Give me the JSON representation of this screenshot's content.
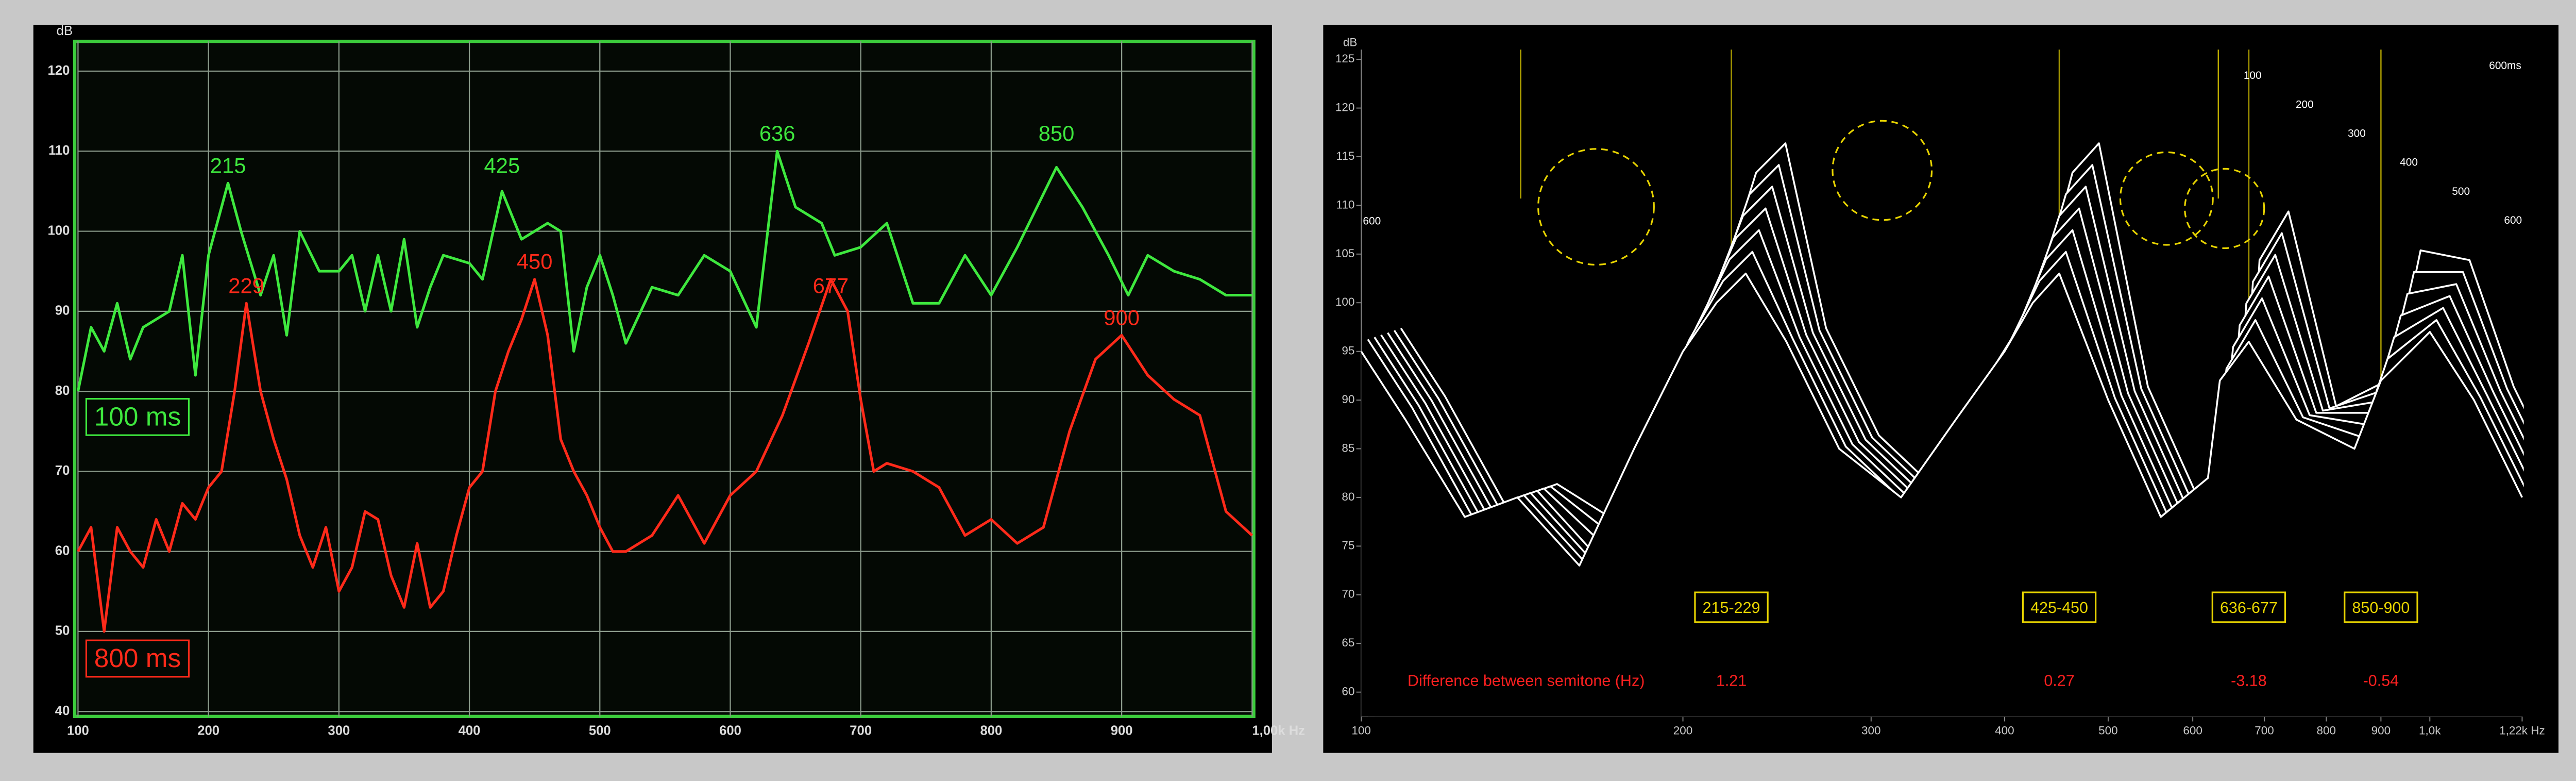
{
  "chart_data": [
    {
      "type": "line",
      "ylabel": "dB",
      "xlim": [
        100,
        1000
      ],
      "ylim": [
        40,
        120
      ],
      "xticks": [
        100,
        200,
        300,
        400,
        500,
        600,
        700,
        800,
        900,
        {
          "value": 1000,
          "label": "1,00k Hz"
        }
      ],
      "yticks": [
        40,
        50,
        60,
        70,
        80,
        90,
        100,
        110,
        120
      ],
      "grid": true,
      "legend": "left",
      "series": [
        {
          "name": "100 ms",
          "color": "#3ee83e",
          "x": [
            100,
            110,
            120,
            130,
            140,
            150,
            170,
            180,
            190,
            200,
            215,
            225,
            240,
            250,
            260,
            270,
            285,
            300,
            310,
            320,
            330,
            340,
            350,
            360,
            370,
            380,
            400,
            410,
            425,
            440,
            460,
            470,
            480,
            490,
            500,
            510,
            520,
            540,
            560,
            580,
            600,
            620,
            636,
            650,
            670,
            680,
            700,
            720,
            740,
            760,
            780,
            800,
            820,
            850,
            870,
            890,
            905,
            920,
            940,
            960,
            980,
            1000
          ],
          "values": [
            80,
            88,
            85,
            91,
            84,
            88,
            90,
            97,
            82,
            97,
            106,
            100,
            92,
            97,
            87,
            100,
            95,
            95,
            97,
            90,
            97,
            90,
            99,
            88,
            93,
            97,
            96,
            94,
            105,
            99,
            101,
            100,
            85,
            93,
            97,
            92,
            86,
            93,
            92,
            97,
            95,
            88,
            110,
            103,
            101,
            97,
            98,
            101,
            91,
            91,
            97,
            92,
            98,
            108,
            103,
            97,
            92,
            97,
            95,
            94,
            92,
            92
          ]
        },
        {
          "name": "800 ms",
          "color": "#ff2a1a",
          "x": [
            100,
            110,
            120,
            130,
            140,
            150,
            160,
            170,
            180,
            190,
            200,
            210,
            220,
            229,
            240,
            250,
            260,
            270,
            280,
            290,
            300,
            310,
            320,
            330,
            340,
            350,
            360,
            370,
            380,
            390,
            400,
            410,
            420,
            430,
            440,
            450,
            460,
            470,
            480,
            490,
            500,
            510,
            520,
            540,
            560,
            580,
            600,
            620,
            640,
            660,
            677,
            690,
            700,
            710,
            720,
            740,
            760,
            780,
            800,
            820,
            840,
            860,
            880,
            900,
            920,
            940,
            960,
            980,
            1000
          ],
          "values": [
            60,
            63,
            50,
            63,
            60,
            58,
            64,
            60,
            66,
            64,
            68,
            70,
            80,
            91,
            80,
            74,
            69,
            62,
            58,
            63,
            55,
            58,
            65,
            64,
            57,
            53,
            61,
            53,
            55,
            62,
            68,
            70,
            80,
            85,
            89,
            94,
            87,
            74,
            70,
            67,
            63,
            60,
            60,
            62,
            67,
            61,
            67,
            70,
            77,
            86,
            94,
            90,
            79,
            70,
            71,
            70,
            68,
            62,
            64,
            61,
            63,
            75,
            84,
            87,
            82,
            79,
            77,
            65,
            62
          ]
        }
      ],
      "annotations": [
        {
          "x": 215,
          "y": 108,
          "color": "#3ee83e"
        },
        {
          "x": 425,
          "y": 108,
          "color": "#3ee83e"
        },
        {
          "x": 636,
          "y": 112,
          "color": "#3ee83e"
        },
        {
          "x": 850,
          "y": 112,
          "color": "#3ee83e"
        },
        {
          "x": 229,
          "y": 93,
          "color": "#ff2a1a"
        },
        {
          "x": 450,
          "y": 96,
          "color": "#ff2a1a"
        },
        {
          "x": 677,
          "y": 93,
          "color": "#ff2a1a"
        },
        {
          "x": 900,
          "y": 89,
          "color": "#ff2a1a"
        }
      ]
    },
    {
      "type": "waterfall",
      "ylabel": "dB",
      "xlog": true,
      "xlim": [
        100,
        1220
      ],
      "ylim": [
        57.5,
        126
      ],
      "xticks": [
        100,
        200,
        300,
        400,
        500,
        600,
        700,
        800,
        900,
        {
          "value": 1000,
          "label": "1,0k"
        },
        {
          "value": 1220,
          "label": "1,22k Hz"
        }
      ],
      "yticks": [
        60,
        65,
        70,
        75,
        80,
        85,
        90,
        95,
        100,
        105,
        110,
        115,
        120,
        125
      ],
      "color": "#ffffff",
      "marker_color": "#e8d400",
      "diff_color": "#ff2020",
      "x": [
        100,
        110,
        125,
        140,
        160,
        180,
        200,
        215,
        229,
        250,
        280,
        320,
        360,
        400,
        425,
        450,
        500,
        560,
        620,
        636,
        677,
        750,
        850,
        900,
        1000,
        1100,
        1220
      ],
      "slices": [
        {
          "t": 600,
          "values": [
            78,
            71,
            60,
            62,
            58,
            67,
            83,
            94,
            97,
            78,
            67,
            61,
            70,
            83,
            94,
            97,
            72,
            60,
            64,
            85,
            90,
            70,
            73,
            86,
            85,
            72,
            62
          ]
        },
        {
          "t": 500,
          "values": [
            81,
            74,
            63,
            65,
            60,
            70,
            85,
            95,
            98,
            81,
            70,
            64,
            73,
            85,
            95,
            98,
            75,
            63,
            67,
            86,
            91,
            73,
            75,
            87,
            87,
            75,
            65
          ]
        },
        {
          "t": 400,
          "values": [
            84,
            77,
            66,
            68,
            62,
            73,
            87,
            96,
            99,
            84,
            73,
            67,
            76,
            87,
            96,
            99,
            78,
            66,
            70,
            87,
            92,
            76,
            77,
            88,
            89,
            78,
            68
          ]
        },
        {
          "t": 300,
          "values": [
            87,
            80,
            69,
            71,
            64,
            76,
            89,
            97,
            100,
            87,
            76,
            70,
            79,
            89,
            97,
            100,
            81,
            69,
            73,
            88,
            93,
            79,
            79,
            89,
            91,
            81,
            71
          ]
        },
        {
          "t": 200,
          "values": [
            90,
            83,
            72,
            74,
            67,
            79,
            91,
            98,
            101,
            90,
            79,
            73,
            82,
            91,
            98,
            101,
            84,
            72,
            76,
            89,
            94,
            82,
            81,
            90,
            93,
            84,
            74
          ]
        },
        {
          "t": 100,
          "values": [
            93,
            86,
            75,
            77,
            70,
            82,
            93,
            99,
            102,
            93,
            82,
            76,
            85,
            93,
            99,
            102,
            87,
            75,
            79,
            90,
            95,
            85,
            83,
            91,
            95,
            87,
            77
          ]
        },
        {
          "t": 0,
          "values": [
            95,
            88,
            78,
            80,
            73,
            85,
            95,
            100,
            103,
            96,
            85,
            80,
            88,
            95,
            100,
            103,
            90,
            78,
            82,
            92,
            96,
            88,
            85,
            92,
            97,
            90,
            80
          ]
        }
      ],
      "zticks": [
        100,
        200,
        300,
        400,
        500,
        600
      ],
      "zlabel": "600ms",
      "zleft": 600,
      "guides": [
        141,
        634
      ],
      "diff_title": "Difference between semitone (Hz)",
      "markers": [
        {
          "x": 222,
          "label": "215-229",
          "diff": 1.21
        },
        {
          "x": 450,
          "label": "425-450",
          "diff": 0.27
        },
        {
          "x": 677,
          "label": "636-677",
          "diff": -3.18
        },
        {
          "x": 900,
          "label": "850-900",
          "diff": -0.54
        }
      ]
    }
  ]
}
